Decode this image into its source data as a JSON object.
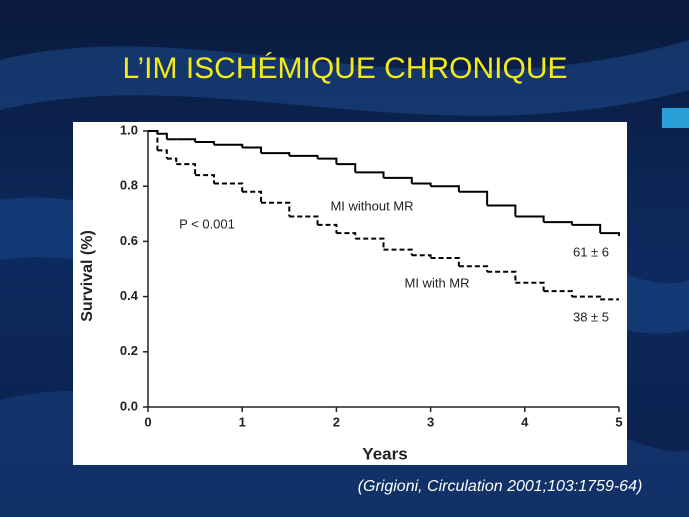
{
  "chart_data": {
    "type": "step",
    "title": "L’IM ISCHÉMIQUE CHRONIQUE",
    "x_label": "Years",
    "y_label": "Survival (%)",
    "citation": "(Grigioni, Circulation 2001;103:1759-64)",
    "annotations": [
      "P < 0.001",
      "61 ± 6",
      "38 ± 5"
    ],
    "x": [
      0,
      0.1,
      0.2,
      0.3,
      0.5,
      0.7,
      1.0,
      1.2,
      1.5,
      1.8,
      2.0,
      2.2,
      2.5,
      2.8,
      3.0,
      3.3,
      3.6,
      3.9,
      4.2,
      4.5,
      4.8,
      5.0
    ],
    "series": [
      {
        "name": "MI without MR",
        "color": "#000000",
        "dashed": false,
        "values": [
          1.0,
          0.99,
          0.97,
          0.97,
          0.96,
          0.95,
          0.94,
          0.92,
          0.91,
          0.9,
          0.88,
          0.85,
          0.83,
          0.81,
          0.8,
          0.78,
          0.73,
          0.69,
          0.67,
          0.66,
          0.63,
          0.62
        ]
      },
      {
        "name": "MI with MR",
        "color": "#000000",
        "dashed": true,
        "values": [
          1.0,
          0.93,
          0.9,
          0.88,
          0.84,
          0.81,
          0.78,
          0.74,
          0.69,
          0.66,
          0.63,
          0.61,
          0.57,
          0.55,
          0.54,
          0.51,
          0.49,
          0.45,
          0.42,
          0.4,
          0.39,
          0.39
        ]
      }
    ],
    "xlim": [
      0,
      5
    ],
    "ylim": [
      0,
      1
    ],
    "xticks": [
      0,
      1,
      2,
      3,
      4,
      5
    ],
    "yticks": [
      {
        "value": 0,
        "label": "0.0"
      },
      0.2,
      0.4,
      0.6,
      0.8,
      {
        "value": 1,
        "label": "1.0"
      }
    ]
  }
}
